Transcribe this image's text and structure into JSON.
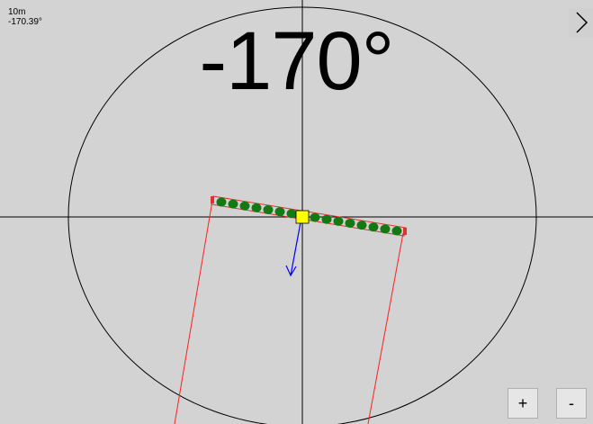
{
  "readout": {
    "scale": "10m",
    "heading": "-170.39°"
  },
  "display": {
    "heading_rounded": "-170°"
  },
  "controls": {
    "zoom_in_label": "+",
    "zoom_out_label": "-",
    "next_icon": "chevron-right-icon"
  },
  "array": {
    "dot_count": 16,
    "colors": {
      "dot": "#137a13",
      "center": "#ffff00",
      "bar": "#e03030",
      "arrow": "#0000ff",
      "beam": "#ff2020"
    }
  }
}
